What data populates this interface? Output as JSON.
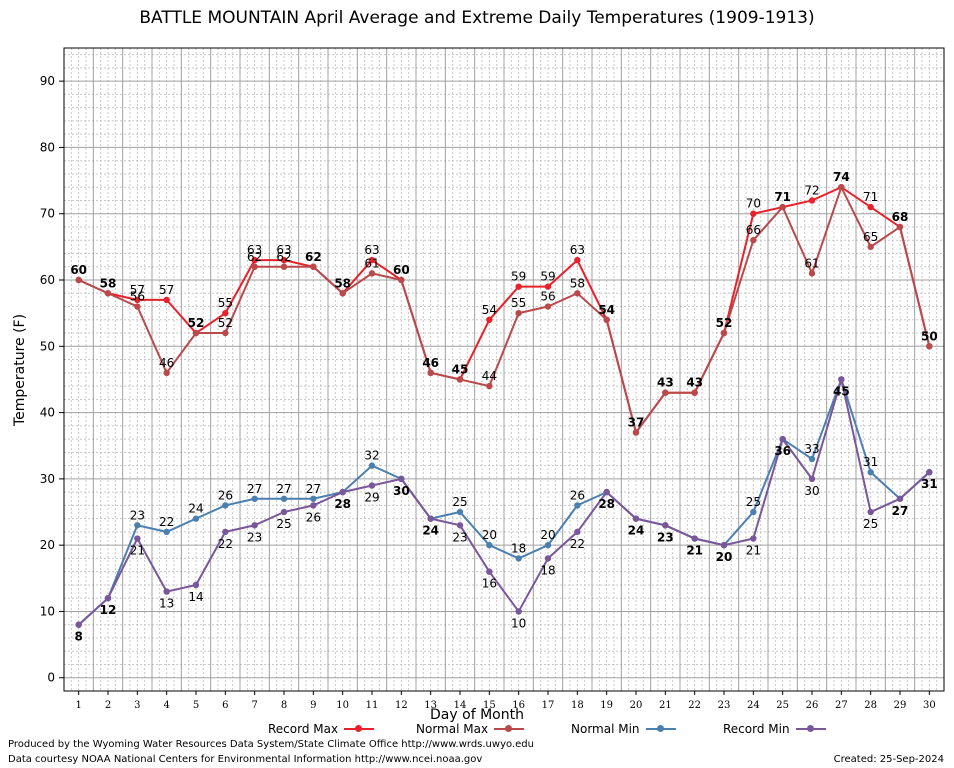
{
  "chart_data": {
    "type": "line",
    "title": "BATTLE MOUNTAIN April Average and Extreme Daily Temperatures (1909-1913)",
    "xlabel": "Day of Month",
    "ylabel": "Temperature (F)",
    "x": [
      1,
      2,
      3,
      4,
      5,
      6,
      7,
      8,
      9,
      10,
      11,
      12,
      13,
      14,
      15,
      16,
      17,
      18,
      19,
      20,
      21,
      22,
      23,
      24,
      25,
      26,
      27,
      28,
      29,
      30
    ],
    "ylim": [
      -2,
      95
    ],
    "yticks": [
      0,
      10,
      20,
      30,
      40,
      50,
      60,
      70,
      80,
      90
    ],
    "grid": true,
    "legend_position": "bottom",
    "series": [
      {
        "name": "Record Max",
        "color": "#e8212b",
        "values": [
          60,
          58,
          57,
          57,
          52,
          55,
          63,
          63,
          62,
          58,
          63,
          60,
          46,
          45,
          54,
          59,
          59,
          63,
          54,
          37,
          43,
          43,
          52,
          70,
          71,
          72,
          74,
          71,
          68,
          50
        ]
      },
      {
        "name": "Normal Max",
        "color": "#b94a4c",
        "values": [
          60,
          58,
          56,
          46,
          52,
          52,
          62,
          62,
          62,
          58,
          61,
          60,
          46,
          45,
          44,
          55,
          56,
          58,
          54,
          37,
          43,
          43,
          52,
          66,
          71,
          61,
          74,
          65,
          68,
          50
        ]
      },
      {
        "name": "Normal Min",
        "color": "#4a7fb0",
        "values": [
          8,
          12,
          23,
          22,
          24,
          26,
          27,
          27,
          27,
          28,
          32,
          30,
          24,
          25,
          20,
          18,
          20,
          26,
          28,
          24,
          23,
          21,
          20,
          25,
          36,
          33,
          45,
          31,
          27,
          31
        ]
      },
      {
        "name": "Record Min",
        "color": "#7a569a",
        "values": [
          8,
          12,
          21,
          13,
          14,
          22,
          23,
          25,
          26,
          28,
          29,
          30,
          24,
          23,
          16,
          10,
          18,
          22,
          28,
          24,
          23,
          21,
          20,
          21,
          36,
          30,
          45,
          25,
          27,
          31
        ]
      }
    ]
  },
  "footer": {
    "producer": "Produced by the Wyoming Water Resources Data System/State Climate Office http://www.wrds.uwyo.edu",
    "courtesy": "Data courtesy NOAA National Centers for Environmental Information http://www.ncei.noaa.gov",
    "created": "Created:  25-Sep-2024"
  }
}
